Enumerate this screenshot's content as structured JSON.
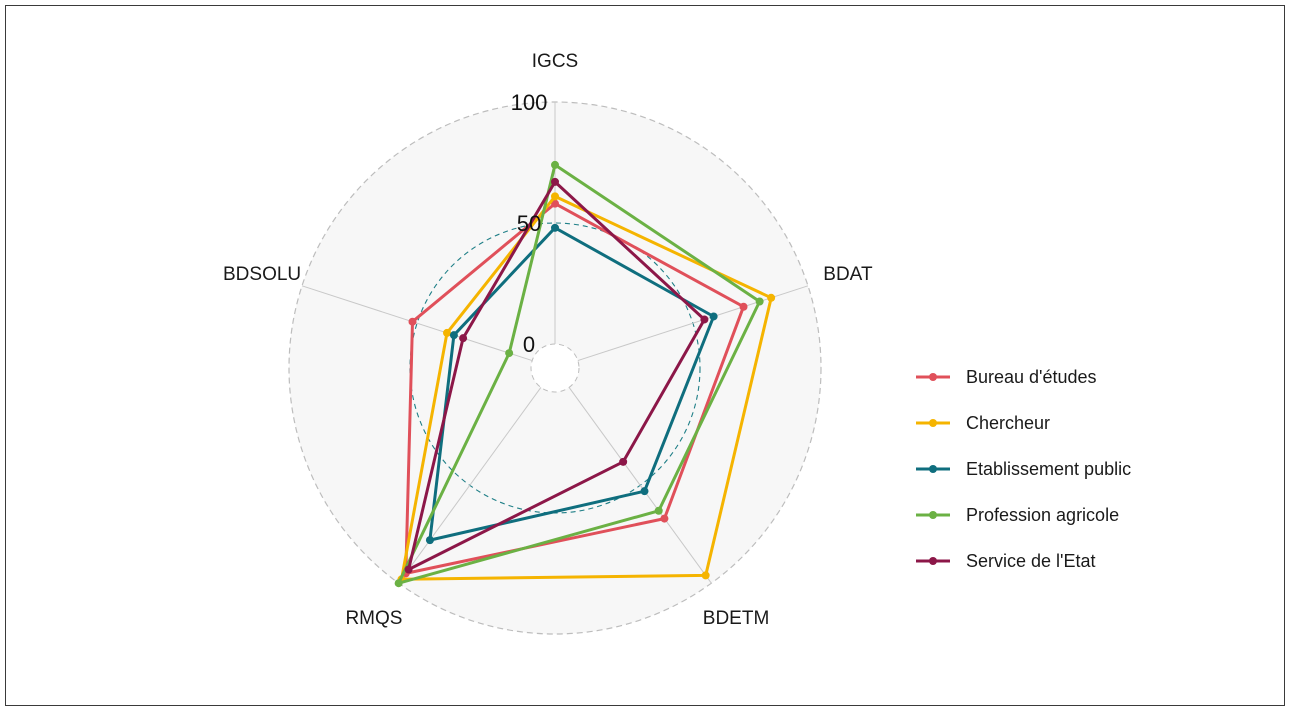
{
  "chart_data": {
    "type": "radar",
    "axes": [
      "IGCS",
      "BDAT",
      "BDETM",
      "RMQS",
      "BDSOLU"
    ],
    "range": [
      0,
      100
    ],
    "ticks": [
      0,
      50,
      100
    ],
    "tick_labels": [
      "0",
      "50",
      "100"
    ],
    "grid": true,
    "legend_position": "right",
    "series": [
      {
        "name": "Bureau d'études",
        "color": "#E0505A",
        "values": [
          58,
          72,
          67,
          95,
          52
        ]
      },
      {
        "name": "Chercheur",
        "color": "#F5B400",
        "values": [
          61,
          84,
          96,
          98,
          37
        ]
      },
      {
        "name": "Etablissement public",
        "color": "#0F6E7E",
        "values": [
          48,
          59,
          53,
          78,
          34
        ]
      },
      {
        "name": "Profession agricole",
        "color": "#6BB144",
        "values": [
          74,
          79,
          63,
          100,
          10
        ]
      },
      {
        "name": "Service de l'Etat",
        "color": "#8C1748",
        "values": [
          67,
          55,
          38,
          93,
          30
        ]
      }
    ]
  }
}
